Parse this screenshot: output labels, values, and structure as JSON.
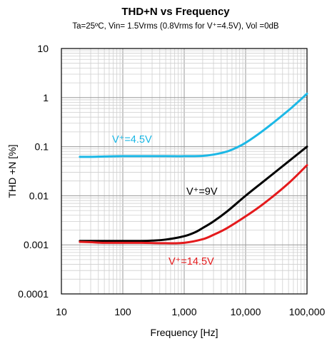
{
  "chart_data": {
    "type": "line",
    "title": "THD+N vs Frequency",
    "subtitle": "Ta=25ºC, Vin= 1.5Vrms (0.8Vrms for V⁺=4.5V), Vol =0dB",
    "xlabel": "Frequency [Hz]",
    "ylabel": "THD +N [%]",
    "xscale": "log",
    "yscale": "log",
    "xlim": [
      10,
      100000
    ],
    "ylim": [
      0.0001,
      10
    ],
    "grid": true,
    "x_tick_labels": [
      "10",
      "100",
      "1,000",
      "10,000",
      "100,000"
    ],
    "y_tick_labels": [
      "10",
      "1",
      "0.1",
      "0.01",
      "0.001",
      "0.0001"
    ],
    "series": [
      {
        "name": "V⁺=4.5V",
        "color": "#1cb8e6",
        "x": [
          20,
          30,
          50,
          100,
          200,
          500,
          1000,
          2000,
          3000,
          5000,
          7000,
          10000,
          20000,
          50000,
          100000
        ],
        "values": [
          0.062,
          0.062,
          0.063,
          0.064,
          0.064,
          0.064,
          0.064,
          0.065,
          0.069,
          0.08,
          0.095,
          0.12,
          0.22,
          0.55,
          1.2
        ]
      },
      {
        "name": "V⁺=9V",
        "color": "#000000",
        "x": [
          20,
          30,
          50,
          100,
          200,
          300,
          500,
          1000,
          1500,
          2000,
          3000,
          5000,
          10000,
          20000,
          50000,
          100000
        ],
        "values": [
          0.0012,
          0.0012,
          0.0012,
          0.0012,
          0.0012,
          0.00122,
          0.00128,
          0.0015,
          0.0018,
          0.0022,
          0.003,
          0.0048,
          0.01,
          0.02,
          0.05,
          0.1
        ]
      },
      {
        "name": "V⁺=14.5V",
        "color": "#e41a1c",
        "x": [
          20,
          30,
          50,
          100,
          200,
          500,
          1000,
          2000,
          3000,
          5000,
          10000,
          20000,
          50000,
          100000
        ],
        "values": [
          0.00115,
          0.00113,
          0.0011,
          0.0011,
          0.0011,
          0.00108,
          0.0011,
          0.0013,
          0.0016,
          0.0022,
          0.0038,
          0.007,
          0.018,
          0.042
        ]
      }
    ]
  }
}
